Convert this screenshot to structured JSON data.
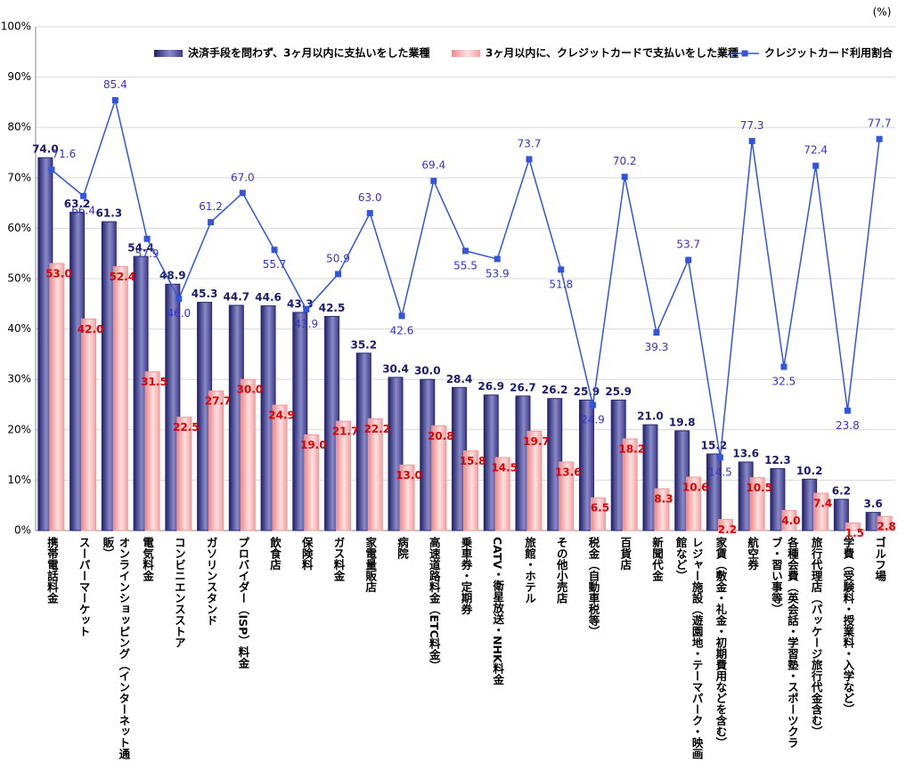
{
  "chart_data": {
    "type": "bar-line",
    "unit_label": "(%)",
    "categories": [
      "携帯電話料金",
      "スーパーマーケット",
      "オンラインショッピング（インターネット通販）",
      "電気料金",
      "コンビニエンスストア",
      "ガソリンスタンド",
      "プロバイダー（ISP）料金",
      "飲食店",
      "保険料",
      "ガス料金",
      "家電量販店",
      "病院",
      "高速道路料金（ETC料金）",
      "乗車券・定期券",
      "CATV・衛星放送・NHK料金",
      "旅館・ホテル",
      "その他小売店",
      "税金（自動車税等）",
      "百貨店",
      "新聞代金",
      "レジャー施設（遊園地・テーマパーク・映画館など）",
      "家賃（敷金・礼金・初期費用などを含む）",
      "航空券",
      "各種会費（英会話・学習塾・スポーツクラブ・習い事等）",
      "旅行代理店（パッケージ旅行代金含む）",
      "学費（受験料・授業料・入学など）",
      "ゴルフ場"
    ],
    "series": [
      {
        "name": "決済手段を問わず、3ヶ月以内に支払いをした業種",
        "type": "bar",
        "color": "#3a3a8c",
        "label_color": "#1a1a6e",
        "values": [
          74.0,
          63.2,
          61.3,
          54.4,
          48.9,
          45.3,
          44.7,
          44.6,
          43.3,
          42.5,
          35.2,
          30.4,
          30.0,
          28.4,
          26.9,
          26.7,
          26.2,
          25.9,
          25.9,
          21.0,
          19.8,
          15.2,
          13.6,
          12.3,
          10.2,
          6.2,
          3.6
        ],
        "value_labels": [
          "74.0",
          "63.2",
          "61.3",
          "54.4",
          "48.9",
          "45.3",
          "44.7",
          "44.6",
          "43.3",
          "42.5",
          "35.2",
          "30.4",
          "30.0",
          "28.4",
          "26.9",
          "26.7",
          "26.2",
          "25.9",
          "25.9",
          "21.0",
          "19.8",
          "15.2",
          "13.6",
          "12.3",
          "10.2",
          "6.2",
          "3.6"
        ]
      },
      {
        "name": "3ヶ月以内に、クレジットカードで支払いをした業種",
        "type": "bar",
        "color": "#f4a0a0",
        "label_color": "#e00000",
        "values": [
          53.0,
          42.0,
          52.4,
          31.5,
          22.5,
          27.7,
          30.0,
          24.9,
          19.0,
          21.7,
          22.2,
          13.0,
          20.8,
          15.8,
          14.5,
          19.7,
          13.6,
          6.5,
          18.2,
          8.3,
          10.6,
          2.2,
          10.5,
          4.0,
          7.4,
          1.5,
          2.8
        ],
        "value_labels": [
          "53.0",
          "42.0",
          "52.4",
          "31.5",
          "22.5",
          "27.7",
          "30.0",
          "24.9",
          "19.0",
          "21.7",
          "22.2",
          "13.0",
          "20.8",
          "15.8",
          "14.5",
          "19.7",
          "13.6",
          "6.5",
          "18.2",
          "8.3",
          "10.6",
          "2.2",
          "10.5",
          "4.0",
          "7.4",
          "1.5",
          "2.8"
        ]
      },
      {
        "name": "クレジットカード利用割合",
        "type": "line",
        "color": "#3355dd",
        "label_color": "#3333cc",
        "values": [
          71.6,
          66.4,
          85.4,
          57.9,
          46.0,
          61.2,
          67.0,
          55.7,
          43.9,
          50.9,
          63.0,
          42.6,
          69.4,
          55.5,
          53.9,
          73.7,
          51.8,
          24.9,
          70.2,
          39.3,
          53.7,
          14.5,
          77.3,
          32.5,
          72.4,
          23.8,
          77.7
        ],
        "value_labels": [
          "71.6",
          "66.4",
          "85.4",
          "57.9",
          "46.0",
          "61.2",
          "67.0",
          "55.7",
          "43.9",
          "50.9",
          "63.0",
          "42.6",
          "69.4",
          "55.5",
          "53.9",
          "73.7",
          "51.8",
          "24.9",
          "70.2",
          "39.3",
          "53.7",
          "14.5",
          "77.3",
          "32.5",
          "72.4",
          "23.8",
          "77.7"
        ]
      }
    ],
    "ylim": [
      0,
      100
    ],
    "yticks": [
      {
        "value": 0,
        "label": "0%"
      },
      {
        "value": 10,
        "label": "10%"
      },
      {
        "value": 20,
        "label": "20%"
      },
      {
        "value": 30,
        "label": "30%"
      },
      {
        "value": 40,
        "label": "40%"
      },
      {
        "value": 50,
        "label": "50%"
      },
      {
        "value": 60,
        "label": "60%"
      },
      {
        "value": 70,
        "label": "70%"
      },
      {
        "value": 80,
        "label": "80%"
      },
      {
        "value": 90,
        "label": "90%"
      },
      {
        "value": 100,
        "label": "100%"
      }
    ],
    "grid": true,
    "legend": "top-right"
  }
}
